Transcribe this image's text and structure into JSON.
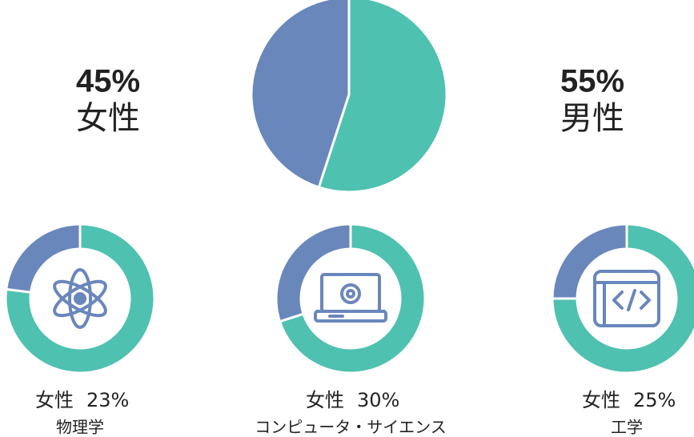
{
  "chart_data": [
    {
      "type": "pie",
      "categories": [
        "女性",
        "男性"
      ],
      "values": [
        45,
        55
      ],
      "value_labels": [
        "45%",
        "55%"
      ],
      "colors": [
        "#6a87bc",
        "#4fc1b0"
      ]
    },
    {
      "type": "donut",
      "title": "物理学",
      "categories": [
        "女性",
        null
      ],
      "values": [
        23,
        77
      ],
      "value_labels": [
        "23%",
        null
      ],
      "colors": [
        "#6a87bc",
        "#4fc1b0"
      ]
    },
    {
      "type": "donut",
      "title": "コンピュータ・サイエンス",
      "categories": [
        "女性",
        null
      ],
      "values": [
        30,
        70
      ],
      "value_labels": [
        "30%",
        null
      ],
      "colors": [
        "#6a87bc",
        "#4fc1b0"
      ]
    },
    {
      "type": "donut",
      "title": "工学",
      "categories": [
        "女性",
        null
      ],
      "values": [
        25,
        75
      ],
      "value_labels": [
        "25%",
        null
      ],
      "colors": [
        "#6a87bc",
        "#4fc1b0"
      ]
    }
  ]
}
